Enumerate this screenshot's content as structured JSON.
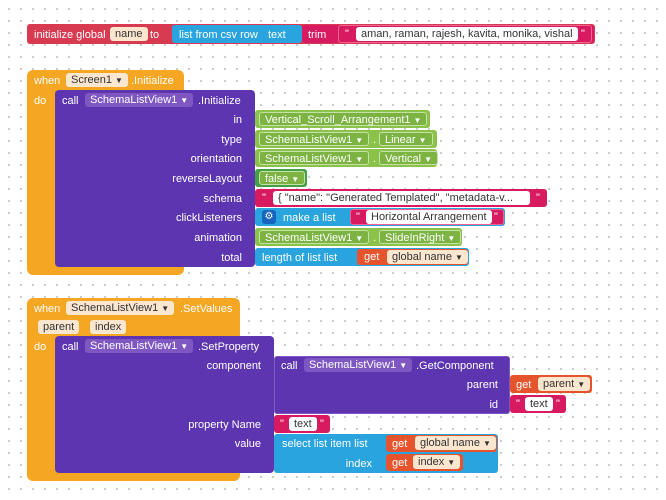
{
  "global_block": {
    "initialize_label": "initialize global",
    "var_name": "name",
    "to_label": "to",
    "list_from_csv_label": "list from csv row",
    "text_label": "text",
    "trim_label": "trim",
    "csv_value": "aman, raman, rajesh, kavita, monika, vishal",
    "quote": "\""
  },
  "screen_init": {
    "when": "when",
    "component": "Screen1",
    "event": ".Initialize",
    "do": "do",
    "call": "call",
    "target": "SchemaListView1",
    "method": ".Initialize",
    "params": {
      "in": "in",
      "type": "type",
      "orientation": "orientation",
      "reverseLayout": "reverseLayout",
      "schema": "schema",
      "clickListeners": "clickListeners",
      "animation": "animation",
      "total": "total"
    },
    "values": {
      "in": "Vertical_Scroll_Arrangement1",
      "type_comp": "SchemaListView1",
      "type_val": "Linear",
      "orient_comp": "SchemaListView1",
      "orient_val": "Vertical",
      "reverse_val": "false",
      "schema_val": "{   \"name\": \"Generated Templated\",   \"metadata-v...",
      "make_list": "make a list",
      "click_val": "Horizontal Arrangement",
      "anim_comp": "SchemaListView1",
      "anim_val": "SlideInRight",
      "length_label": "length of list  list",
      "get_label": "get",
      "get_var": "global name"
    }
  },
  "setvalues": {
    "when": "when",
    "component": "SchemaListView1",
    "event": ".SetValues",
    "param1": "parent",
    "param2": "index",
    "do": "do",
    "call": "call",
    "target": "SchemaListView1",
    "method": ".SetProperty",
    "component_label": "component",
    "inner_call": "call",
    "inner_target": "SchemaListView1",
    "inner_method": ".GetComponent",
    "parent_label": "parent",
    "id_label": "id",
    "get_label": "get",
    "get_parent": "parent",
    "id_value": "text",
    "property_label": "property Name",
    "property_value": "text",
    "value_label": "value",
    "select_label": "select list item  list",
    "get_global": "global name",
    "index_label": "index",
    "get_index": "index"
  }
}
